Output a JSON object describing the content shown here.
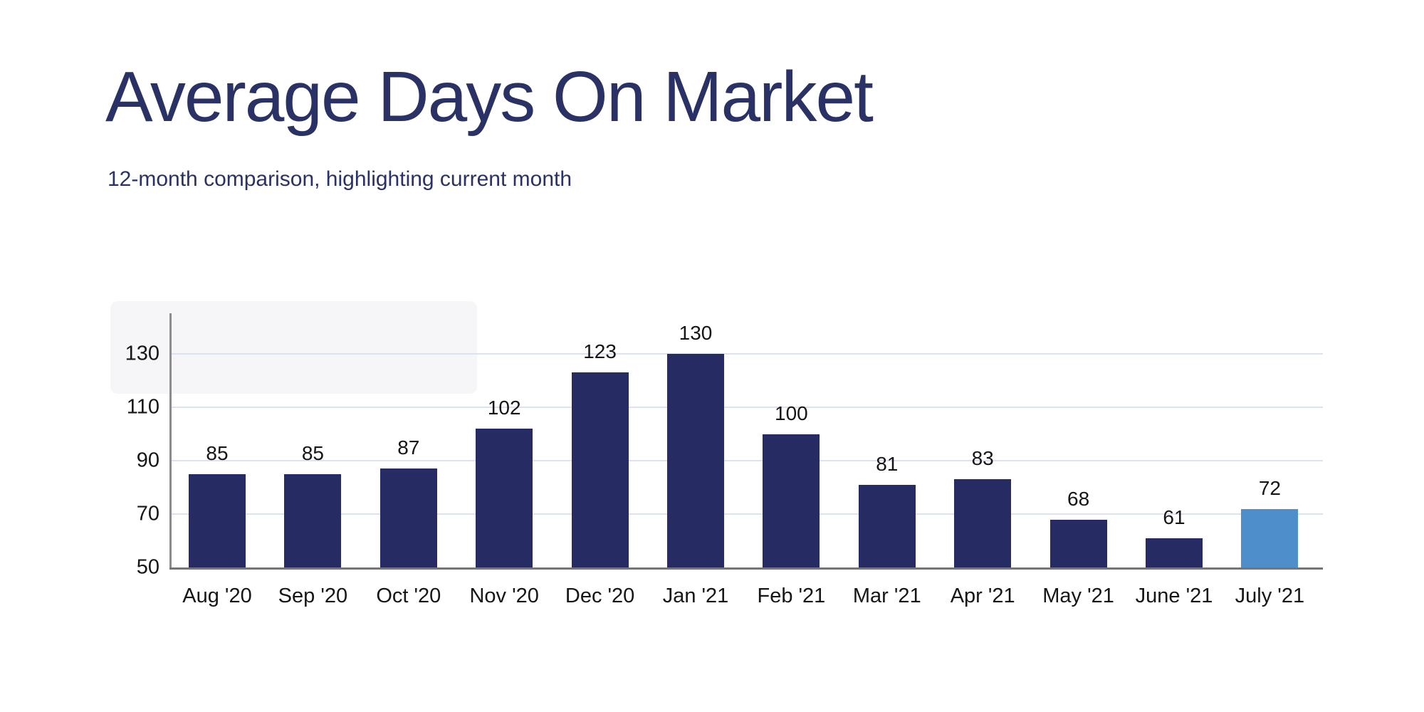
{
  "page": {
    "title": "Average Days On Market",
    "subtitle": "12-month comparison, highlighting current month"
  },
  "colors": {
    "title": "#2a3164",
    "bar": "#262c63",
    "bar_highlight": "#4d8ecb",
    "gridline": "#dce3ef",
    "axis_line": "#8c8c8c",
    "baseline": "#757575",
    "tick_label": "#161616",
    "panel": "#f6f6f8",
    "background": "#ffffff"
  },
  "chart_data": {
    "type": "bar",
    "title": "Average Days On Market",
    "subtitle": "12-month comparison, highlighting current month",
    "categories": [
      "Aug '20",
      "Sep '20",
      "Oct '20",
      "Nov '20",
      "Dec '20",
      "Jan '21",
      "Feb '21",
      "Mar '21",
      "Apr '21",
      "May '21",
      "June '21",
      "July '21"
    ],
    "values": [
      85,
      85,
      87,
      102,
      123,
      130,
      100,
      81,
      83,
      68,
      61,
      72
    ],
    "highlight_index": 11,
    "highlight_meaning": "current month",
    "bar_labels": true,
    "xlabel": "",
    "ylabel": "",
    "ylim": [
      50,
      145
    ],
    "yticks": [
      50,
      70,
      90,
      110,
      130
    ],
    "grid": true,
    "legend": false
  }
}
